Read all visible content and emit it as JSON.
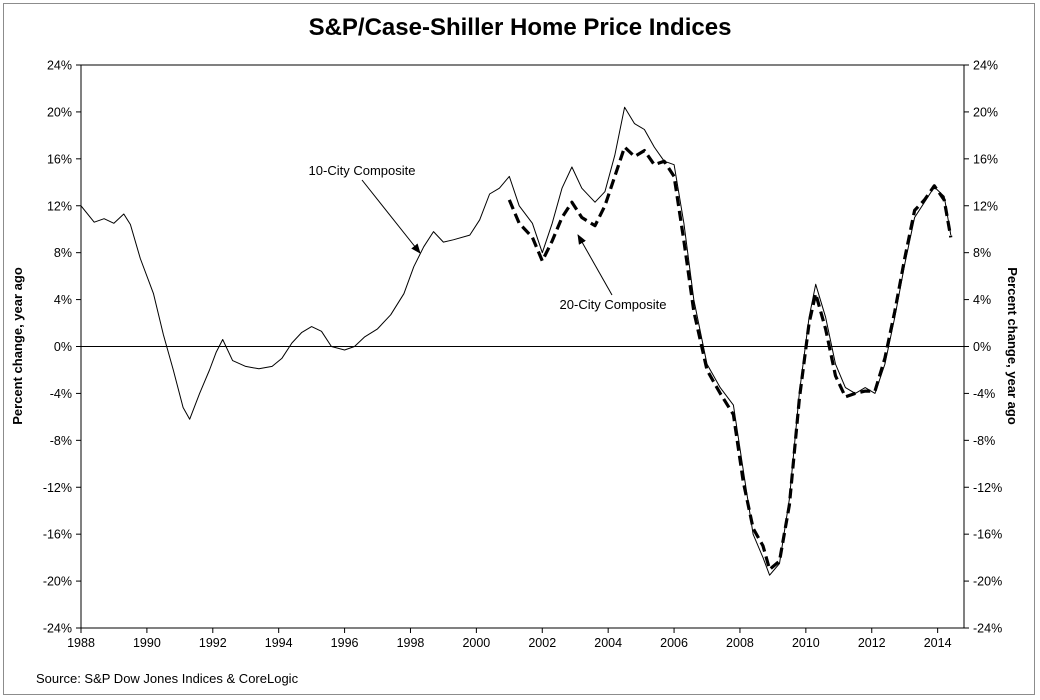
{
  "chart_data": {
    "type": "line",
    "title": "S&P/Case-Shiller Home Price Indices",
    "ylabel_left": "Percent change, year ago",
    "ylabel_right": "Percent change, year ago",
    "source": "Source: S&P Dow Jones Indices & CoreLogic",
    "xlim": [
      1988,
      2014.8
    ],
    "ylim": [
      -24,
      24
    ],
    "x_ticks": [
      1988,
      1990,
      1992,
      1994,
      1996,
      1998,
      2000,
      2002,
      2004,
      2006,
      2008,
      2010,
      2012,
      2014
    ],
    "y_ticks": [
      24,
      20,
      16,
      12,
      8,
      4,
      0,
      -4,
      -8,
      -12,
      -16,
      -20,
      -24
    ],
    "y_tick_labels": [
      "24%",
      "20%",
      "16%",
      "12%",
      "8%",
      "4%",
      "0%",
      "-4%",
      "-8%",
      "-12%",
      "-16%",
      "-20%",
      "-24%"
    ],
    "grid": false,
    "zero_line": true,
    "annotations": [
      {
        "text": "10-City Composite",
        "series": "10-City Composite"
      },
      {
        "text": "20-City Composite",
        "series": "20-City Composite"
      }
    ],
    "series": [
      {
        "name": "10-City Composite",
        "style": "solid",
        "color": "#000000",
        "points": [
          [
            1988.0,
            12.0
          ],
          [
            1988.4,
            10.6
          ],
          [
            1988.7,
            10.9
          ],
          [
            1989.0,
            10.5
          ],
          [
            1989.3,
            11.3
          ],
          [
            1989.5,
            10.4
          ],
          [
            1989.8,
            7.5
          ],
          [
            1990.2,
            4.5
          ],
          [
            1990.5,
            1.0
          ],
          [
            1990.8,
            -2.0
          ],
          [
            1991.1,
            -5.2
          ],
          [
            1991.3,
            -6.2
          ],
          [
            1991.6,
            -4.0
          ],
          [
            1991.9,
            -2.0
          ],
          [
            1992.1,
            -0.5
          ],
          [
            1992.3,
            0.6
          ],
          [
            1992.6,
            -1.2
          ],
          [
            1993.0,
            -1.7
          ],
          [
            1993.4,
            -1.9
          ],
          [
            1993.8,
            -1.7
          ],
          [
            1994.1,
            -1.0
          ],
          [
            1994.4,
            0.3
          ],
          [
            1994.7,
            1.2
          ],
          [
            1995.0,
            1.7
          ],
          [
            1995.3,
            1.3
          ],
          [
            1995.6,
            0.0
          ],
          [
            1996.0,
            -0.3
          ],
          [
            1996.3,
            0.0
          ],
          [
            1996.6,
            0.8
          ],
          [
            1997.0,
            1.5
          ],
          [
            1997.4,
            2.7
          ],
          [
            1997.8,
            4.5
          ],
          [
            1998.1,
            6.8
          ],
          [
            1998.4,
            8.5
          ],
          [
            1998.7,
            9.8
          ],
          [
            1999.0,
            8.9
          ],
          [
            1999.3,
            9.1
          ],
          [
            1999.8,
            9.5
          ],
          [
            2000.1,
            10.8
          ],
          [
            2000.4,
            13.0
          ],
          [
            2000.7,
            13.5
          ],
          [
            2001.0,
            14.5
          ],
          [
            2001.3,
            12.0
          ],
          [
            2001.7,
            10.5
          ],
          [
            2002.0,
            8.0
          ],
          [
            2002.3,
            10.5
          ],
          [
            2002.6,
            13.5
          ],
          [
            2002.9,
            15.3
          ],
          [
            2003.2,
            13.5
          ],
          [
            2003.6,
            12.3
          ],
          [
            2003.9,
            13.2
          ],
          [
            2004.2,
            16.3
          ],
          [
            2004.5,
            20.4
          ],
          [
            2004.8,
            19.0
          ],
          [
            2005.1,
            18.5
          ],
          [
            2005.4,
            17.0
          ],
          [
            2005.7,
            15.8
          ],
          [
            2006.0,
            15.5
          ],
          [
            2006.3,
            10.5
          ],
          [
            2006.6,
            4.0
          ],
          [
            2007.0,
            -1.5
          ],
          [
            2007.4,
            -3.5
          ],
          [
            2007.8,
            -5.0
          ],
          [
            2008.1,
            -10.5
          ],
          [
            2008.4,
            -16.0
          ],
          [
            2008.7,
            -18.0
          ],
          [
            2008.9,
            -19.5
          ],
          [
            2009.2,
            -18.5
          ],
          [
            2009.5,
            -13.0
          ],
          [
            2009.8,
            -4.0
          ],
          [
            2010.1,
            2.5
          ],
          [
            2010.3,
            5.3
          ],
          [
            2010.6,
            2.5
          ],
          [
            2010.9,
            -1.5
          ],
          [
            2011.2,
            -3.5
          ],
          [
            2011.5,
            -4.0
          ],
          [
            2011.8,
            -3.5
          ],
          [
            2012.1,
            -4.0
          ],
          [
            2012.4,
            -1.5
          ],
          [
            2012.7,
            2.5
          ],
          [
            2013.0,
            7.0
          ],
          [
            2013.3,
            11.0
          ],
          [
            2013.6,
            12.3
          ],
          [
            2013.9,
            13.6
          ],
          [
            2014.2,
            12.8
          ],
          [
            2014.4,
            9.5
          ]
        ]
      },
      {
        "name": "20-City Composite",
        "style": "dashed",
        "color": "#000000",
        "points": [
          [
            2001.0,
            12.5
          ],
          [
            2001.3,
            10.5
          ],
          [
            2001.7,
            9.3
          ],
          [
            2002.0,
            7.3
          ],
          [
            2002.3,
            9.0
          ],
          [
            2002.6,
            11.0
          ],
          [
            2002.9,
            12.3
          ],
          [
            2003.2,
            11.0
          ],
          [
            2003.6,
            10.3
          ],
          [
            2003.9,
            12.0
          ],
          [
            2004.2,
            14.5
          ],
          [
            2004.5,
            17.0
          ],
          [
            2004.8,
            16.2
          ],
          [
            2005.1,
            16.7
          ],
          [
            2005.4,
            15.5
          ],
          [
            2005.7,
            15.8
          ],
          [
            2006.0,
            14.5
          ],
          [
            2006.3,
            9.0
          ],
          [
            2006.6,
            3.0
          ],
          [
            2007.0,
            -2.0
          ],
          [
            2007.4,
            -4.0
          ],
          [
            2007.8,
            -5.8
          ],
          [
            2008.1,
            -11.5
          ],
          [
            2008.4,
            -15.5
          ],
          [
            2008.7,
            -17.0
          ],
          [
            2008.9,
            -19.0
          ],
          [
            2009.2,
            -18.3
          ],
          [
            2009.5,
            -13.5
          ],
          [
            2009.8,
            -4.5
          ],
          [
            2010.1,
            2.0
          ],
          [
            2010.3,
            4.5
          ],
          [
            2010.6,
            1.5
          ],
          [
            2010.9,
            -2.5
          ],
          [
            2011.2,
            -4.3
          ],
          [
            2011.5,
            -4.0
          ],
          [
            2011.8,
            -3.8
          ],
          [
            2012.1,
            -3.8
          ],
          [
            2012.4,
            -1.0
          ],
          [
            2012.7,
            3.0
          ],
          [
            2013.0,
            7.5
          ],
          [
            2013.3,
            11.6
          ],
          [
            2013.6,
            12.5
          ],
          [
            2013.9,
            13.7
          ],
          [
            2014.2,
            12.5
          ],
          [
            2014.4,
            9.3
          ]
        ]
      }
    ]
  }
}
